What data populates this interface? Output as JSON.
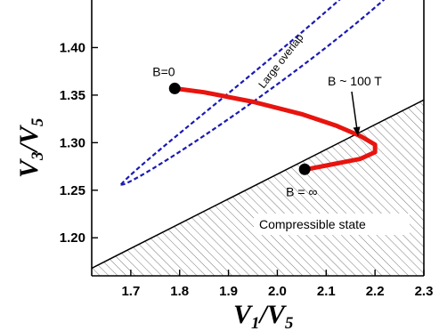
{
  "chart_data": {
    "type": "line",
    "title": "",
    "xlabel": {
      "main": "V",
      "sub1": "1",
      "slash": "/V",
      "sub2": "5"
    },
    "ylabel": {
      "main": "V",
      "sub1": "3",
      "slash": "/V",
      "sub2": "5"
    },
    "xlim": [
      1.62,
      2.3
    ],
    "ylim": [
      1.16,
      1.45
    ],
    "xticks": [
      1.7,
      1.8,
      1.9,
      2.0,
      2.1,
      2.2,
      2.3
    ],
    "xtick_labels": [
      "1.7",
      "1.8",
      "1.9",
      "2.0",
      "2.1",
      "2.2",
      "2.3"
    ],
    "yticks": [
      1.2,
      1.25,
      1.3,
      1.35,
      1.4
    ],
    "ytick_labels": [
      "1.20",
      "1.25",
      "1.30",
      "1.35",
      "1.40"
    ],
    "grid": false,
    "series": [
      {
        "color": "#e8140f",
        "x": [
          1.79,
          1.85,
          1.95,
          2.05,
          2.12,
          2.17,
          2.2,
          2.2,
          2.17,
          2.12,
          2.06
        ],
        "y": [
          1.357,
          1.353,
          1.343,
          1.33,
          1.318,
          1.307,
          1.298,
          1.29,
          1.283,
          1.278,
          1.272
        ]
      }
    ],
    "points": [
      {
        "x": 1.79,
        "y": 1.357,
        "label": "B=0"
      },
      {
        "x": 2.056,
        "y": 1.272,
        "label": "B = ∞"
      }
    ],
    "boundary_line": {
      "x": [
        1.62,
        2.3
      ],
      "y": [
        1.168,
        1.345
      ],
      "color": "#000000"
    },
    "region_label": "Compressible state",
    "overlap_label": "Large overlap",
    "arrow_label": "B ~ 100 T",
    "overlap_color": "#1a1ab4"
  }
}
